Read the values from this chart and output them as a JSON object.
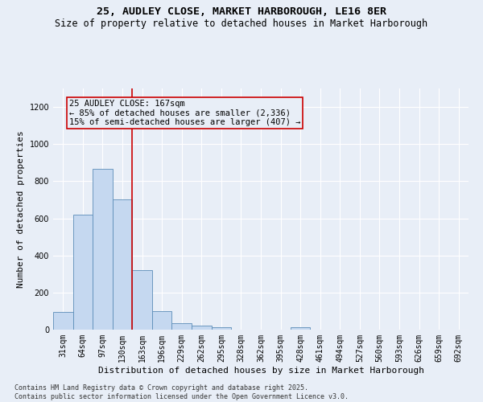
{
  "title_line1": "25, AUDLEY CLOSE, MARKET HARBOROUGH, LE16 8ER",
  "title_line2": "Size of property relative to detached houses in Market Harborough",
  "xlabel": "Distribution of detached houses by size in Market Harborough",
  "ylabel": "Number of detached properties",
  "footer_line1": "Contains HM Land Registry data © Crown copyright and database right 2025.",
  "footer_line2": "Contains public sector information licensed under the Open Government Licence v3.0.",
  "categories": [
    "31sqm",
    "64sqm",
    "97sqm",
    "130sqm",
    "163sqm",
    "196sqm",
    "229sqm",
    "262sqm",
    "295sqm",
    "328sqm",
    "362sqm",
    "395sqm",
    "428sqm",
    "461sqm",
    "494sqm",
    "527sqm",
    "560sqm",
    "593sqm",
    "626sqm",
    "659sqm",
    "692sqm"
  ],
  "values": [
    97,
    620,
    868,
    700,
    320,
    100,
    33,
    20,
    15,
    0,
    0,
    0,
    15,
    0,
    0,
    0,
    0,
    0,
    0,
    0,
    0
  ],
  "bar_color": "#c5d8f0",
  "bar_edge_color": "#5b8db8",
  "annotation_text": "25 AUDLEY CLOSE: 167sqm\n← 85% of detached houses are smaller (2,336)\n15% of semi-detached houses are larger (407) →",
  "vline_color": "#cc0000",
  "annotation_box_edge_color": "#cc0000",
  "ylim": [
    0,
    1300
  ],
  "yticks": [
    0,
    200,
    400,
    600,
    800,
    1000,
    1200
  ],
  "background_color": "#e8eef7",
  "grid_color": "#ffffff",
  "title_fontsize": 9.5,
  "subtitle_fontsize": 8.5,
  "axis_label_fontsize": 8,
  "tick_fontsize": 7,
  "annotation_fontsize": 7.5,
  "footer_fontsize": 6,
  "ylabel_fontsize": 8
}
